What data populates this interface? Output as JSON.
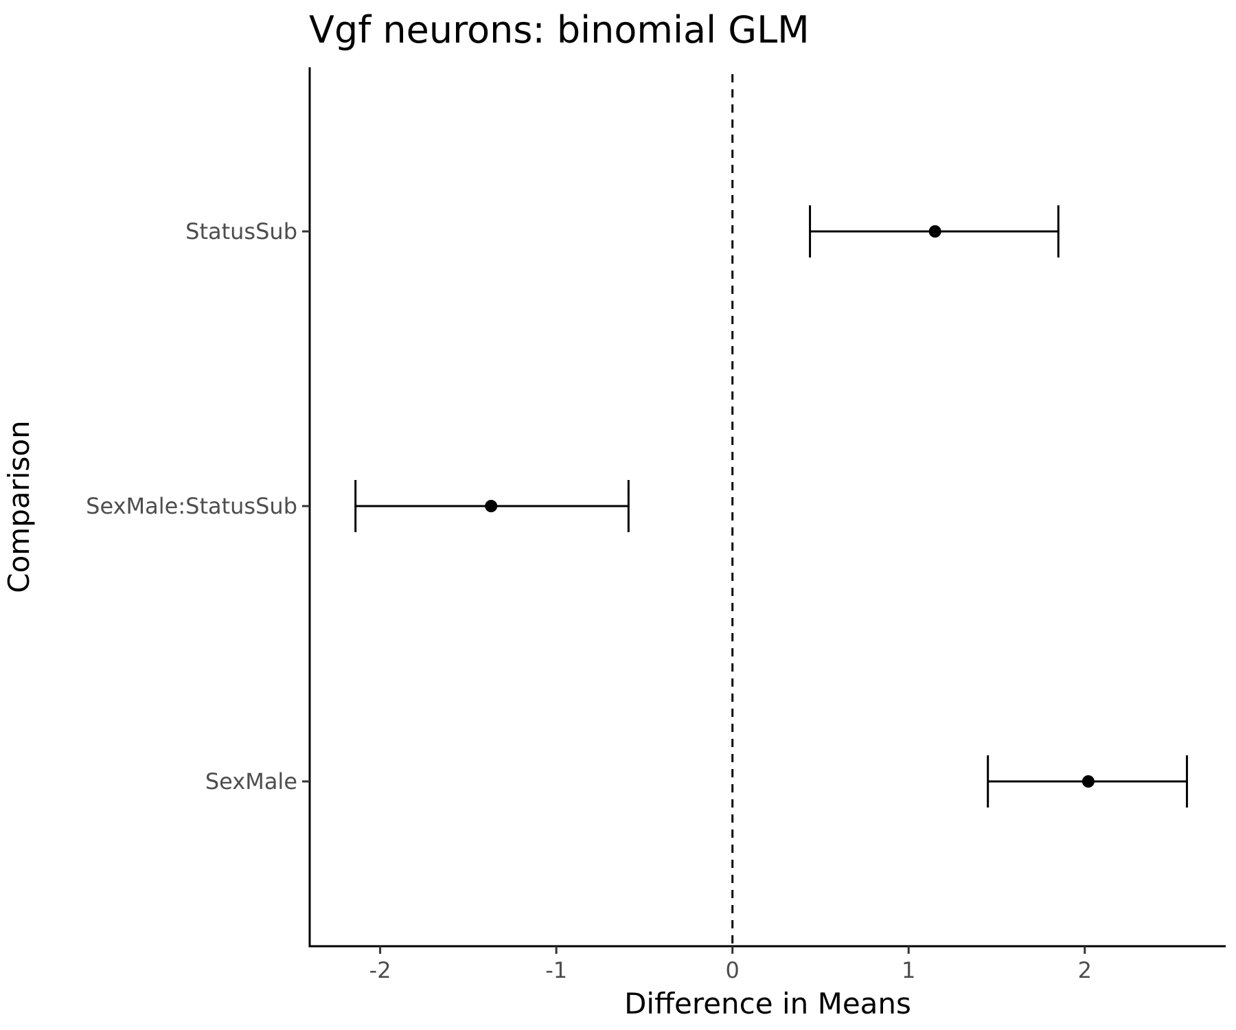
{
  "chart_data": {
    "type": "scatter",
    "title": "Vgf neurons: binomial GLM",
    "xlabel": "Difference in Means",
    "ylabel": "Comparison",
    "xlim": [
      -2.4,
      2.8
    ],
    "x_ticks": [
      -2,
      -1,
      0,
      1,
      2
    ],
    "x_tick_labels": [
      "-2",
      "-1",
      "0",
      "1",
      "2"
    ],
    "categories": [
      "StatusSub",
      "SexMale:StatusSub",
      "SexMale"
    ],
    "points": [
      {
        "category": "StatusSub",
        "estimate": 1.15,
        "lower": 0.44,
        "upper": 1.85
      },
      {
        "category": "SexMale:StatusSub",
        "estimate": -1.37,
        "lower": -2.14,
        "upper": -0.59
      },
      {
        "category": "SexMale",
        "estimate": 2.02,
        "lower": 1.45,
        "upper": 2.58
      }
    ],
    "reference_line": {
      "x": 0,
      "style": "dashed"
    },
    "grid": false,
    "legend": "none"
  }
}
